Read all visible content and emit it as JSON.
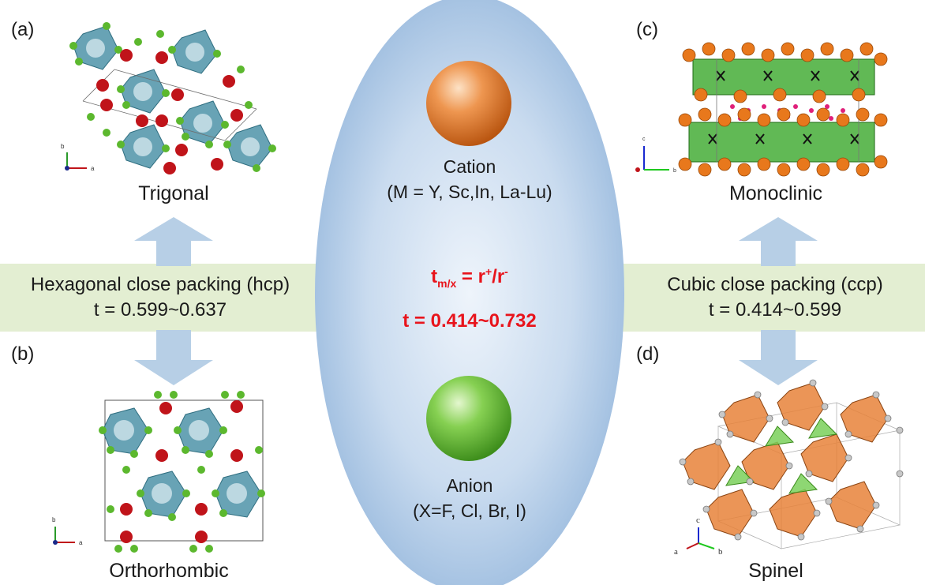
{
  "panels": {
    "a": {
      "label": "(a)",
      "caption": "Trigonal"
    },
    "b": {
      "label": "(b)",
      "caption": "Orthorhombic"
    },
    "c": {
      "label": "(c)",
      "caption": "Monoclinic"
    },
    "d": {
      "label": "(d)",
      "caption": "Spinel"
    }
  },
  "left_band": {
    "line1": "Hexagonal close packing (hcp)",
    "line2": "t = 0.599~0.637"
  },
  "right_band": {
    "line1": "Cubic close packing (ccp)",
    "line2": "t = 0.414~0.599"
  },
  "center": {
    "cation_title": "Cation",
    "cation_desc": "(M = Y, Sc,In, La-Lu)",
    "formula_t": "t",
    "formula_sub": "m/x",
    "formula_eq": " = r",
    "formula_sup1": "+",
    "formula_div": "/r",
    "formula_sup2": "-",
    "range": "t = 0.414~0.732",
    "anion_title": "Anion",
    "anion_desc": "(X=F, Cl, Br, I)"
  },
  "axes": {
    "a_labels": [
      "b",
      "a"
    ],
    "b_labels": [
      "b",
      "a"
    ],
    "c_labels": [
      "c",
      "b"
    ],
    "d_labels": [
      "c",
      "a",
      "b"
    ]
  },
  "colors": {
    "band": "#e3eed2",
    "arrow": "#b7cfe6",
    "ellipse_center": "#e6eff8",
    "ellipse_edge": "#8fb3da",
    "cation": "#e57b2c",
    "anion": "#6cbf3a",
    "formula": "#e8141c",
    "red_atom": "#c0141a",
    "green_atom": "#5cb82e",
    "teal_poly": "#4d93a8",
    "orange_poly": "#e8823a"
  }
}
